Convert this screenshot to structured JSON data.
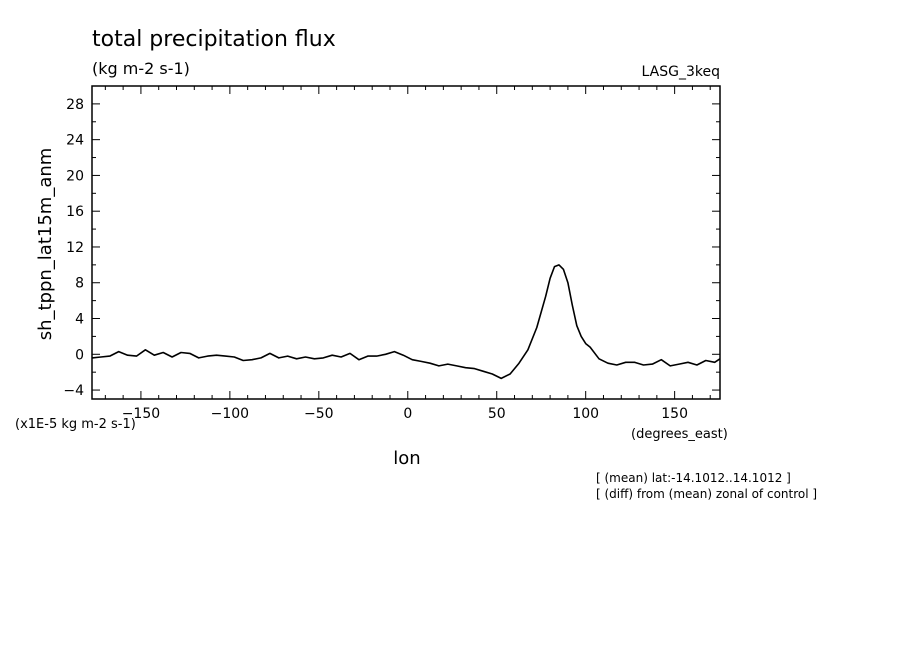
{
  "chart_data": {
    "type": "line",
    "title": "total precipitation flux",
    "subtitle": "(kg m-2 s-1)",
    "run_label": "LASG_3keq",
    "ylabel": "sh_tppn_lat15m_anm",
    "xlabel": "lon",
    "x_units": "(degrees_east)",
    "y_units": "(x1E-5 kg m-2 s-1)",
    "notes": [
      "[ (mean) lat:-14.1012..14.1012 ]",
      "[ (diff) from (mean) zonal of control ]"
    ],
    "xlim": [
      -177.5,
      175.5
    ],
    "ylim": [
      -5,
      30
    ],
    "xticks": [
      -150,
      -100,
      -50,
      0,
      50,
      100,
      150
    ],
    "xtick_labels": [
      "-150",
      "-100",
      "-50",
      "0",
      "50",
      "100",
      "150"
    ],
    "yticks": [
      -4,
      0,
      4,
      8,
      12,
      16,
      20,
      24,
      28
    ],
    "ytick_labels": [
      "-4",
      "0",
      "4",
      "8",
      "12",
      "16",
      "20",
      "24",
      "28"
    ],
    "grid": false,
    "series": [
      {
        "x": [
          -177.5,
          -172.5,
          -167.5,
          -162.5,
          -157.5,
          -152.5,
          -147.5,
          -142.5,
          -137.5,
          -132.5,
          -127.5,
          -122.5,
          -117.5,
          -112.5,
          -107.5,
          -102.5,
          -97.5,
          -92.5,
          -87.5,
          -82.5,
          -77.5,
          -72.5,
          -67.5,
          -62.5,
          -57.5,
          -52.5,
          -47.5,
          -42.5,
          -37.5,
          -32.5,
          -27.5,
          -22.5,
          -17.5,
          -12.5,
          -7.5,
          -2.5,
          2.5,
          7.5,
          12.5,
          17.5,
          22.5,
          27.5,
          32.5,
          37.5,
          42.5,
          47.5,
          52.5,
          57.5,
          62.5,
          67.5,
          72.5,
          77.5,
          80,
          82.5,
          85,
          87.5,
          90,
          92.5,
          95,
          97.5,
          100,
          102.5,
          107.5,
          112.5,
          117.5,
          122.5,
          127.5,
          132.5,
          137.5,
          142.5,
          147.5,
          152.5,
          157.5,
          162.5,
          167.5,
          172.5,
          175.5
        ],
        "y": [
          -0.4,
          -0.3,
          -0.2,
          0.3,
          -0.1,
          -0.2,
          0.5,
          -0.1,
          0.2,
          -0.3,
          0.2,
          0.1,
          -0.4,
          -0.2,
          -0.1,
          -0.2,
          -0.3,
          -0.7,
          -0.6,
          -0.4,
          0.1,
          -0.4,
          -0.2,
          -0.5,
          -0.3,
          -0.5,
          -0.4,
          -0.1,
          -0.3,
          0.1,
          -0.6,
          -0.2,
          -0.2,
          0.0,
          0.3,
          -0.1,
          -0.6,
          -0.8,
          -1.0,
          -1.3,
          -1.1,
          -1.3,
          -1.5,
          -1.6,
          -1.9,
          -2.2,
          -2.7,
          -2.2,
          -1.0,
          0.5,
          3.0,
          6.5,
          8.5,
          9.8,
          10.0,
          9.5,
          8.0,
          5.5,
          3.2,
          2.0,
          1.2,
          0.8,
          -0.5,
          -1.0,
          -1.2,
          -0.9,
          -0.9,
          -1.2,
          -1.1,
          -0.6,
          -1.3,
          -1.1,
          -0.9,
          -1.2,
          -0.7,
          -0.9,
          -0.5
        ]
      }
    ]
  }
}
